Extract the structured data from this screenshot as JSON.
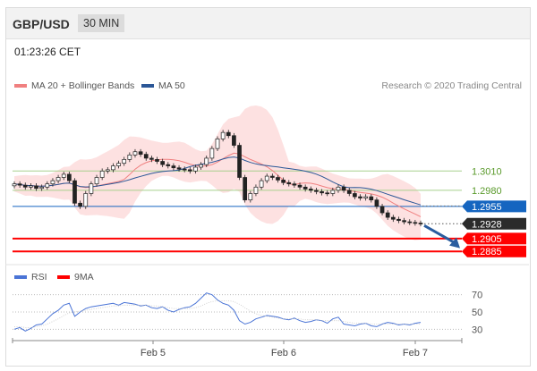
{
  "header": {
    "symbol": "GBP/USD",
    "timeframe": "30 MIN"
  },
  "timestamp": "01:23:26 CET",
  "credit": "Research © 2020 Trading Central",
  "colors": {
    "bollinger_band": "#fddcdc",
    "ma20": "#f08080",
    "ma50": "#2b5797",
    "price": "#222222",
    "resistance": "#a8d08d",
    "support": "#ff0000",
    "pivot": "#1565c0",
    "rsi": "#4a74d6",
    "rsi_ma": "#ff0000",
    "arrow": "#2a5d9f"
  },
  "chart_data": [
    {
      "type": "candlestick",
      "legend": [
        {
          "label": "MA 20 + Bollinger Bands",
          "color": "#f08080"
        },
        {
          "label": "MA 50",
          "color": "#2b5797"
        }
      ],
      "x_ticks": [
        "Feb 5",
        "Feb 6",
        "Feb 7"
      ],
      "ylim": [
        1.287,
        1.313
      ],
      "levels": [
        {
          "label": "1.3010",
          "value": 1.301,
          "kind": "resistance"
        },
        {
          "label": "1.2980",
          "value": 1.298,
          "kind": "resistance"
        },
        {
          "label": "1.2955",
          "value": 1.2955,
          "kind": "pivot"
        },
        {
          "label": "1.2928",
          "value": 1.2928,
          "kind": "last"
        },
        {
          "label": "1.2905",
          "value": 1.2905,
          "kind": "support"
        },
        {
          "label": "1.2885",
          "value": 1.2885,
          "kind": "support"
        }
      ],
      "arrow": {
        "direction": "down",
        "from": 1.2928,
        "to": 1.289
      },
      "close_series": [
        1.299,
        1.2988,
        1.2985,
        1.2987,
        1.2983,
        1.2985,
        1.299,
        1.2995,
        1.3,
        1.3005,
        1.2995,
        1.296,
        1.2955,
        1.2975,
        1.299,
        1.3,
        1.301,
        1.3012,
        1.3018,
        1.3022,
        1.3028,
        1.3035,
        1.304,
        1.3036,
        1.303,
        1.3028,
        1.3025,
        1.302,
        1.3018,
        1.3015,
        1.3013,
        1.3012,
        1.301,
        1.3016,
        1.302,
        1.303,
        1.3045,
        1.306,
        1.307,
        1.3065,
        1.305,
        1.3,
        1.2965,
        1.2975,
        1.2985,
        1.2995,
        1.3002,
        1.3,
        1.2996,
        1.2992,
        1.299,
        1.2988,
        1.2985,
        1.2982,
        1.298,
        1.2978,
        1.2976,
        1.2975,
        1.298,
        1.2985,
        1.298,
        1.2975,
        1.297,
        1.2968,
        1.297,
        1.2965,
        1.2955,
        1.2945,
        1.2938,
        1.2935,
        1.2933,
        1.2931,
        1.293,
        1.2929,
        1.2928
      ]
    },
    {
      "type": "line",
      "legend": [
        {
          "label": "RSI",
          "color": "#4a74d6"
        },
        {
          "label": "9MA",
          "color": "#ff0000"
        }
      ],
      "ylim": [
        20,
        80
      ],
      "y_ticks": [
        "70",
        "50",
        "30"
      ],
      "series": [
        {
          "name": "RSI",
          "values": [
            30,
            32,
            28,
            31,
            35,
            36,
            42,
            48,
            52,
            58,
            60,
            45,
            50,
            54,
            56,
            57,
            58,
            59,
            60,
            58,
            61,
            60,
            59,
            57,
            58,
            55,
            54,
            56,
            52,
            50,
            53,
            55,
            56,
            60,
            66,
            72,
            70,
            64,
            60,
            58,
            52,
            40,
            36,
            38,
            42,
            44,
            46,
            45,
            44,
            42,
            41,
            43,
            40,
            38,
            39,
            41,
            40,
            37,
            42,
            44,
            36,
            35,
            34,
            36,
            37,
            34,
            33,
            36,
            38,
            37,
            35,
            36,
            35,
            37,
            38
          ]
        },
        {
          "name": "9MA",
          "values": [
            33,
            33,
            32,
            32,
            33,
            34,
            36,
            39,
            42,
            46,
            49,
            50,
            51,
            52,
            53,
            54,
            55,
            56,
            57,
            57,
            58,
            58,
            58,
            58,
            58,
            57,
            57,
            56,
            55,
            54,
            54,
            54,
            54,
            55,
            57,
            60,
            62,
            63,
            63,
            63,
            62,
            59,
            55,
            51,
            48,
            46,
            45,
            44,
            43,
            42,
            42,
            42,
            42,
            41,
            41,
            41,
            40,
            40,
            40,
            40,
            39,
            38,
            37,
            37,
            37,
            36,
            36,
            36,
            36,
            36,
            36,
            36,
            36,
            36,
            36
          ]
        }
      ]
    }
  ]
}
